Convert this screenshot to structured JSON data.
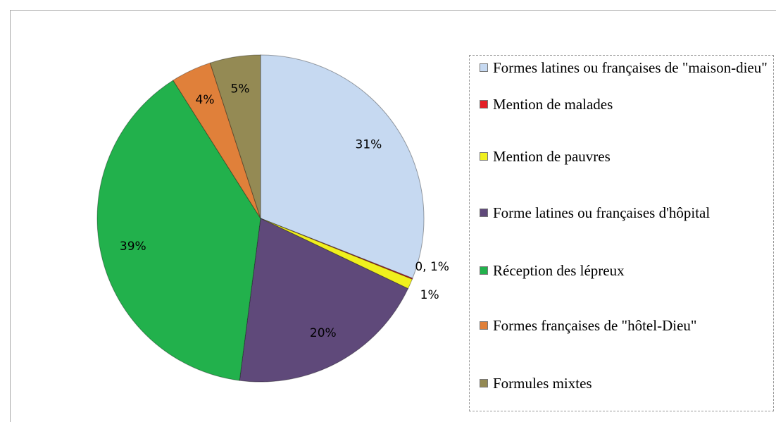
{
  "chart_data": {
    "type": "pie",
    "categories": [
      "Formes latines ou françaises de \"maison-dieu\"",
      "Mention de malades",
      "Mention de pauvres",
      "Forme latines ou françaises d'hôpital",
      "Réception des lépreux",
      "Formes françaises de \"hôtel-Dieu\"",
      "Formules mixtes"
    ],
    "values": [
      31,
      0.1,
      1,
      20,
      39,
      4,
      5
    ],
    "value_labels": [
      "31%",
      "0, 1%",
      "1%",
      "20%",
      "39%",
      "4%",
      "5%"
    ],
    "colors": [
      "#c6d9f1",
      "#e41e26",
      "#f0f01e",
      "#5f497a",
      "#22b14c",
      "#e0803a",
      "#948a54"
    ],
    "legend": "right"
  }
}
